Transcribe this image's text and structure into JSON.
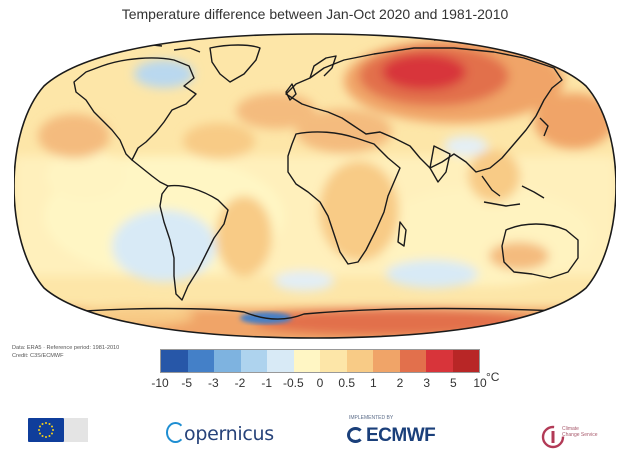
{
  "title": "Temperature difference between Jan-Oct 2020 and 1981-2010",
  "credits": {
    "line1": "Data: ERA5 · Reference period: 1981-2010",
    "line2": "Credit: C3S/ECMWF"
  },
  "colorbar": {
    "unit": "°C",
    "labels": [
      "-10",
      "-5",
      "-3",
      "-2",
      "-1",
      "-0.5",
      "0",
      "0.5",
      "1",
      "2",
      "3",
      "5",
      "10"
    ],
    "colors": [
      "#2757a8",
      "#4480c8",
      "#7eb3e0",
      "#aed3ee",
      "#d8eaf6",
      "#fff6c4",
      "#fde6a8",
      "#f8cb86",
      "#f0a468",
      "#e2704c",
      "#d8343a",
      "#b82626"
    ]
  },
  "logos": {
    "eu": "eu-flag-icon",
    "copernicus": "opernicus",
    "ecmwf_super": "IMPLEMENTED BY",
    "ecmwf": "ECMWF",
    "c3s_line1": "Climate",
    "c3s_line2": "Change Service"
  }
}
